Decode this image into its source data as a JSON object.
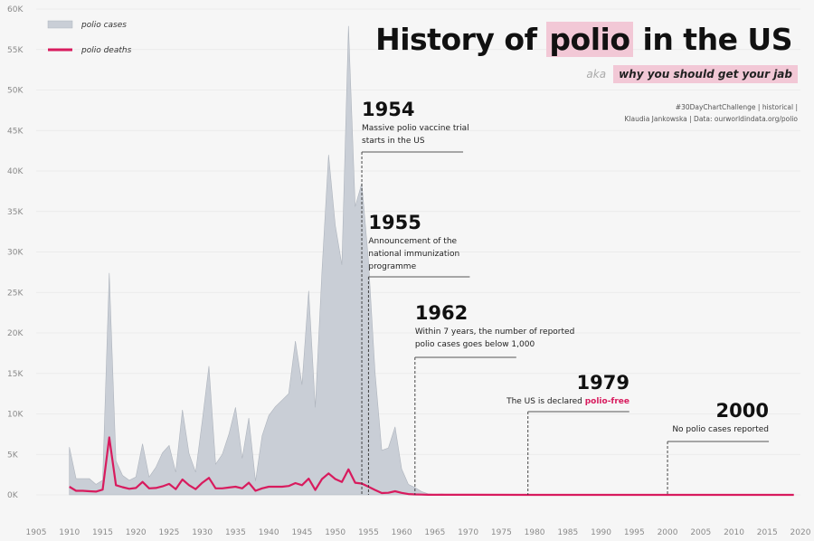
{
  "title_pre": "History of ",
  "title_highlight": "polio",
  "title_post": " in the US",
  "aka": "aka",
  "subtitle": "why you should get your jab",
  "credits_line1": "#30DayChartChallenge | historical |",
  "credits_line2": "Klaudia Jankowska | Data: ourworldindata.org/polio",
  "colors": {
    "cases": "#c9ced6",
    "cases_stroke": "#aeb4bd",
    "deaths": "#d81b5e",
    "highlight": "#f2c8d6"
  },
  "chart_data": {
    "type": "area",
    "title": "History of polio in the US",
    "xlabel": "",
    "ylabel": "",
    "xlim": [
      1905,
      2020
    ],
    "ylim": [
      0,
      60000
    ],
    "x_ticks": [
      "1905",
      "1910",
      "1915",
      "1920",
      "1925",
      "1930",
      "1935",
      "1940",
      "1945",
      "1950",
      "1955",
      "1960",
      "1965",
      "1970",
      "1975",
      "1980",
      "1985",
      "1990",
      "1995",
      "2000",
      "2005",
      "2010",
      "2015",
      "2020"
    ],
    "y_ticks": [
      "0K",
      "5K",
      "10K",
      "15K",
      "20K",
      "25K",
      "30K",
      "35K",
      "40K",
      "45K",
      "50K",
      "55K",
      "60K"
    ],
    "legend": {
      "position": "top-left",
      "entries": [
        "polio cases",
        "polio deaths"
      ]
    },
    "series": [
      {
        "name": "polio cases",
        "x": [
          1910,
          1911,
          1912,
          1913,
          1914,
          1915,
          1916,
          1917,
          1918,
          1919,
          1920,
          1921,
          1922,
          1923,
          1924,
          1925,
          1926,
          1927,
          1928,
          1929,
          1930,
          1931,
          1932,
          1933,
          1934,
          1935,
          1936,
          1937,
          1938,
          1939,
          1940,
          1941,
          1942,
          1943,
          1944,
          1945,
          1946,
          1947,
          1948,
          1949,
          1950,
          1951,
          1952,
          1953,
          1954,
          1955,
          1956,
          1957,
          1958,
          1959,
          1960,
          1961,
          1962,
          1963,
          1964,
          1965,
          1966,
          1967,
          1968,
          1969,
          1970,
          1975,
          1979,
          1985,
          1990,
          2000,
          2010,
          2019
        ],
        "values": [
          5900,
          2000,
          2000,
          2000,
          1300,
          1800,
          27400,
          4200,
          2400,
          1800,
          2200,
          6300,
          2200,
          3400,
          5200,
          6100,
          2800,
          10500,
          5100,
          2800,
          9200,
          15900,
          3800,
          5000,
          7500,
          10800,
          4500,
          9500,
          1700,
          7300,
          9800,
          10900,
          11700,
          12500,
          19000,
          13600,
          25200,
          10800,
          27700,
          42000,
          33300,
          28400,
          57900,
          35600,
          38500,
          28900,
          15100,
          5500,
          5800,
          8400,
          3200,
          1300,
          900,
          400,
          120,
          70,
          110,
          40,
          50,
          20,
          30,
          10,
          5,
          5,
          2,
          0,
          0,
          0
        ]
      },
      {
        "name": "polio deaths",
        "x": [
          1910,
          1911,
          1912,
          1913,
          1914,
          1915,
          1916,
          1917,
          1918,
          1919,
          1920,
          1921,
          1922,
          1923,
          1924,
          1925,
          1926,
          1927,
          1928,
          1929,
          1930,
          1931,
          1932,
          1933,
          1934,
          1935,
          1936,
          1937,
          1938,
          1939,
          1940,
          1941,
          1942,
          1943,
          1944,
          1945,
          1946,
          1947,
          1948,
          1949,
          1950,
          1951,
          1952,
          1953,
          1954,
          1955,
          1956,
          1957,
          1958,
          1959,
          1960,
          1961,
          1962,
          1963,
          1964,
          1965,
          1970,
          1980,
          2000,
          2019
        ],
        "values": [
          1000,
          500,
          500,
          450,
          400,
          650,
          7100,
          1200,
          950,
          750,
          850,
          1600,
          800,
          850,
          1050,
          1350,
          700,
          1900,
          1200,
          700,
          1500,
          2100,
          800,
          800,
          900,
          1000,
          800,
          1500,
          500,
          800,
          1000,
          1000,
          1000,
          1100,
          1450,
          1200,
          2000,
          600,
          1950,
          2650,
          1950,
          1600,
          3150,
          1500,
          1400,
          1000,
          600,
          220,
          260,
          450,
          250,
          100,
          60,
          30,
          15,
          10,
          10,
          5,
          0,
          0
        ]
      }
    ],
    "annotations": [
      {
        "year": "1954",
        "x": 1954,
        "lines": [
          "Massive polio vaccine trial",
          "starts in the US"
        ]
      },
      {
        "year": "1955",
        "x": 1955,
        "lines": [
          "Announcement of the",
          "national immunization",
          "programme"
        ]
      },
      {
        "year": "1962",
        "x": 1962,
        "lines": [
          "Within 7 years, the number of reported",
          "polio cases goes below 1,000"
        ]
      },
      {
        "year": "1979",
        "x": 1979,
        "text_pre": "The US is declared ",
        "text_highlight": "polio-free"
      },
      {
        "year": "2000",
        "x": 2000,
        "lines": [
          "No polio cases reported"
        ]
      }
    ]
  }
}
